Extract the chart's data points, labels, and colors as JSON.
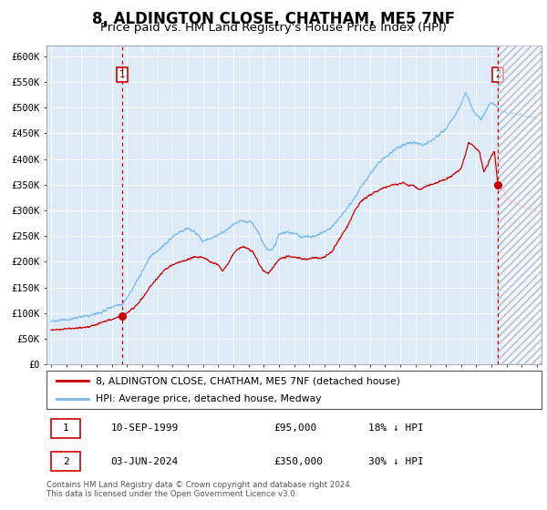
{
  "title": "8, ALDINGTON CLOSE, CHATHAM, ME5 7NF",
  "subtitle": "Price paid vs. HM Land Registry's House Price Index (HPI)",
  "ylim": [
    0,
    620000
  ],
  "yticks": [
    0,
    50000,
    100000,
    150000,
    200000,
    250000,
    300000,
    350000,
    400000,
    450000,
    500000,
    550000,
    600000
  ],
  "ytick_labels": [
    "£0",
    "£50K",
    "£100K",
    "£150K",
    "£200K",
    "£250K",
    "£300K",
    "£350K",
    "£400K",
    "£450K",
    "£500K",
    "£550K",
    "£600K"
  ],
  "xmin": 1994.7,
  "xmax": 2027.3,
  "xticks": [
    1995,
    1996,
    1997,
    1998,
    1999,
    2000,
    2001,
    2002,
    2003,
    2004,
    2005,
    2006,
    2007,
    2008,
    2009,
    2010,
    2011,
    2012,
    2013,
    2014,
    2015,
    2016,
    2017,
    2018,
    2019,
    2020,
    2021,
    2022,
    2023,
    2024,
    2025,
    2026,
    2027
  ],
  "transaction1_x": 1999.69,
  "transaction1_y": 95000,
  "transaction1_label": "1",
  "transaction1_date": "10-SEP-1999",
  "transaction1_price": "£95,000",
  "transaction1_hpi": "18% ↓ HPI",
  "transaction2_x": 2024.42,
  "transaction2_y": 350000,
  "transaction2_label": "2",
  "transaction2_date": "03-JUN-2024",
  "transaction2_price": "£350,000",
  "transaction2_hpi": "30% ↓ HPI",
  "hpi_color": "#7ab8e8",
  "price_color": "#cc0000",
  "price_color_faded": "#e8a0a0",
  "bg_color": "#ddeaf7",
  "legend_line1": "8, ALDINGTON CLOSE, CHATHAM, ME5 7NF (detached house)",
  "legend_line2": "HPI: Average price, detached house, Medway",
  "footer": "Contains HM Land Registry data © Crown copyright and database right 2024.\nThis data is licensed under the Open Government Licence v3.0.",
  "title_fontsize": 12,
  "subtitle_fontsize": 9.5,
  "tick_fontsize": 7.5,
  "label_fontsize": 8.5
}
